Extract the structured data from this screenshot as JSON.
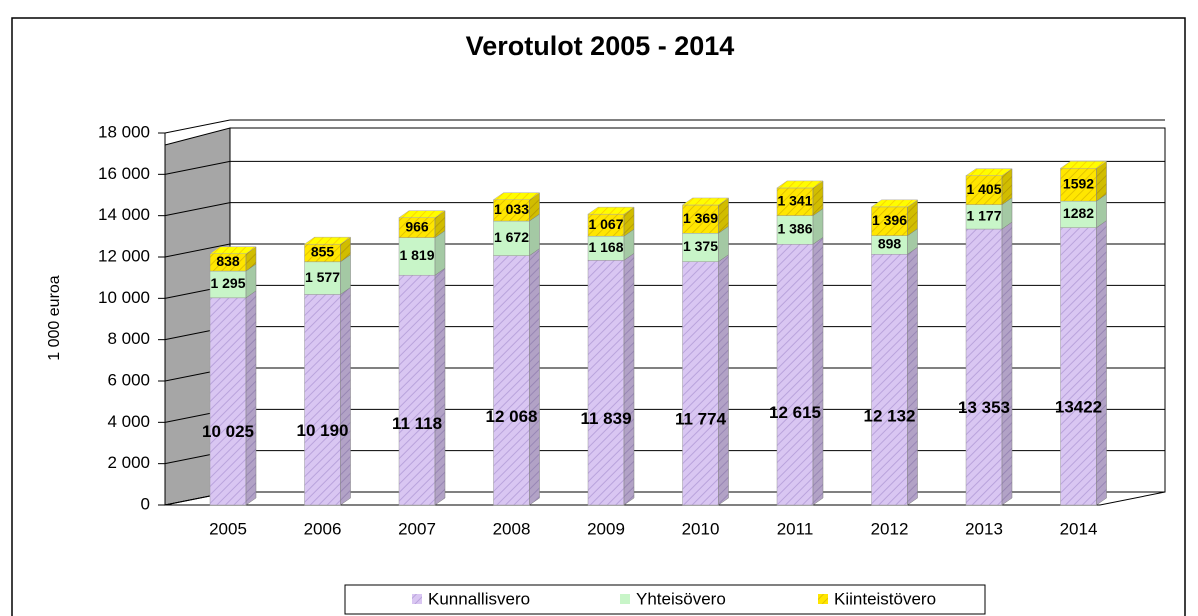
{
  "chart_data": {
    "type": "bar3d_stacked",
    "title": "Verotulot 2005 - 2014",
    "y_label": "1 000 euroa",
    "categories": [
      "2005",
      "2006",
      "2007",
      "2008",
      "2009",
      "2010",
      "2011",
      "2012",
      "2013",
      "2014"
    ],
    "series": [
      {
        "name": "Kunnallisvero",
        "color": "#d9c6f2",
        "values": [
          10025,
          10190,
          11118,
          12068,
          11839,
          11774,
          12615,
          12132,
          13353,
          13422
        ],
        "value_labels": [
          "10 025",
          "10 190",
          "11 118",
          "12 068",
          "11 839",
          "11 774",
          "12 615",
          "12 132",
          "13 353",
          "13422"
        ]
      },
      {
        "name": "Yhteisövero",
        "color": "#c8f5c8",
        "values": [
          1295,
          1577,
          1819,
          1672,
          1168,
          1375,
          1386,
          898,
          1177,
          1282
        ],
        "value_labels": [
          "1 295",
          "1 577",
          "1 819",
          "1 672",
          "1 168",
          "1 375",
          "1 386",
          "898",
          "1 177",
          "1282"
        ]
      },
      {
        "name": "Kiinteistövero",
        "color": "#ffe600",
        "values": [
          838,
          855,
          966,
          1033,
          1067,
          1369,
          1341,
          1396,
          1405,
          1592
        ],
        "value_labels": [
          "838",
          "855",
          "966",
          "1 033",
          "1 067",
          "1 369",
          "1 341",
          "1 396",
          "1 405",
          "1592"
        ]
      }
    ],
    "ylim": [
      0,
      18000
    ],
    "yticks": [
      0,
      {
        "value": 2000,
        "label": "2 000"
      },
      {
        "value": 4000,
        "label": "4 000"
      },
      {
        "value": 6000,
        "label": "6 000"
      },
      {
        "value": 8000,
        "label": "8 000"
      },
      {
        "value": 10000,
        "label": "10 000"
      },
      {
        "value": 12000,
        "label": "12 000"
      },
      {
        "value": 14000,
        "label": "14 000"
      },
      {
        "value": 16000,
        "label": "16 000"
      },
      {
        "value": 18000,
        "label": "18 000"
      }
    ],
    "grid": true,
    "legend": "bottom"
  }
}
